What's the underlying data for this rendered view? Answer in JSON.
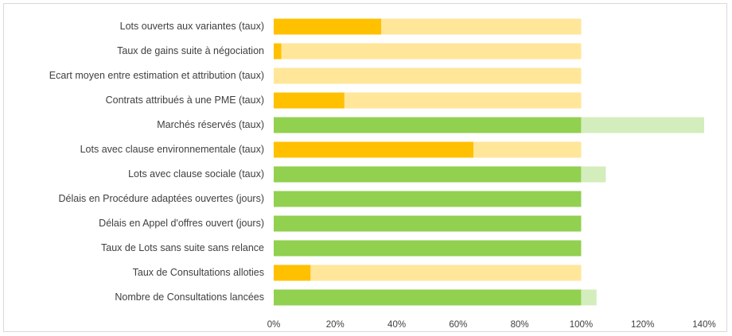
{
  "chart_data": {
    "type": "bar",
    "orientation": "horizontal",
    "stacked": true,
    "categories": [
      "Lots ouverts aux variantes (taux)",
      "Taux de gains suite à négociation",
      "Ecart moyen entre estimation et attribution (taux)",
      "Contrats attribués à une PME (taux)",
      "Marchés réservés (taux)",
      "Lots avec clause environnementale (taux)",
      "Lots avec clause sociale (taux)",
      "Délais en Procédure adaptées ouvertes (jours)",
      "Délais en Appel d'offres ouvert (jours)",
      "Taux de Lots sans suite sans relance",
      "Taux de Consultations alloties",
      "Nombre de Consultations lancées"
    ],
    "values": [
      35,
      2.5,
      0,
      23,
      140,
      65,
      108,
      100,
      100,
      100,
      12,
      105
    ],
    "target": 100,
    "colors": {
      "below_target_fill": "#ffc000",
      "below_target_remainder": "#ffe699",
      "reached_target_fill": "#92d050",
      "over_target_excess": "#d4edbc"
    },
    "xlim": [
      0,
      140
    ],
    "xticks": [
      0,
      20,
      40,
      60,
      80,
      100,
      120,
      140
    ],
    "xtick_labels": [
      "0%",
      "20%",
      "40%",
      "60%",
      "80%",
      "100%",
      "120%",
      "140%"
    ],
    "title": "",
    "xlabel": "",
    "ylabel": "",
    "grid": false,
    "legend": "none"
  }
}
